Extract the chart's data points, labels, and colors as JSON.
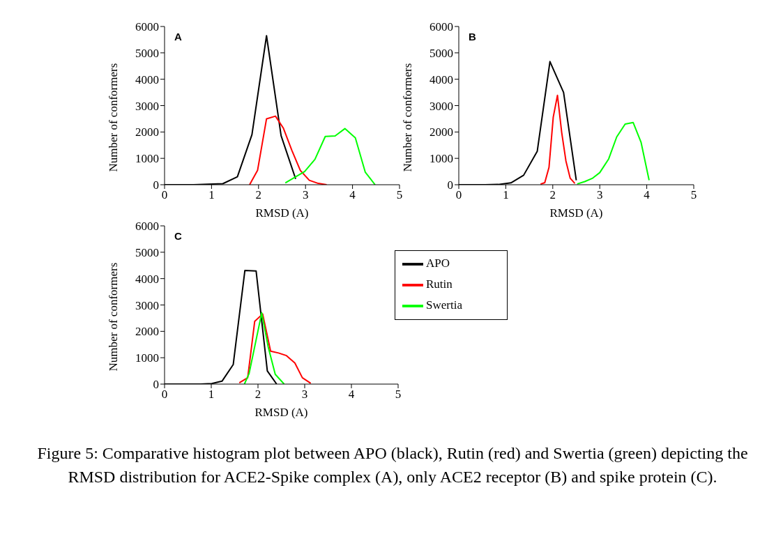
{
  "chart_data": [
    {
      "type": "line",
      "title": "A",
      "xlabel": "RMSD (A)",
      "ylabel": "Number of conformers",
      "xlim": [
        0,
        5
      ],
      "xticks": [
        0,
        1,
        2,
        3,
        4,
        5
      ],
      "ylim": [
        0,
        6000
      ],
      "yticks": [
        0,
        1000,
        2000,
        3000,
        4000,
        5000,
        6000
      ],
      "legend": false,
      "marker": "none",
      "line_style": "solid",
      "series": [
        {
          "color": "#000000",
          "x": [
            0,
            0.31,
            0.62,
            0.93,
            1.24,
            1.55,
            1.86,
            2.17,
            2.48,
            2.79
          ],
          "values": [
            0,
            0,
            0,
            20,
            40,
            300,
            1900,
            5650,
            1860,
            220
          ]
        },
        {
          "color": "#ff0000",
          "x": [
            1.81,
            1.98,
            2.17,
            2.36,
            2.53,
            2.71,
            2.89,
            3.08,
            3.27,
            3.45
          ],
          "values": [
            0,
            550,
            2500,
            2600,
            2140,
            1300,
            540,
            170,
            50,
            0
          ]
        },
        {
          "color": "#00ff00",
          "x": [
            2.57,
            2.98,
            3.2,
            3.42,
            3.63,
            3.84,
            4.06,
            4.27,
            4.48
          ],
          "values": [
            70,
            500,
            960,
            1830,
            1850,
            2130,
            1780,
            480,
            0
          ]
        }
      ]
    },
    {
      "type": "line",
      "title": "B",
      "xlabel": "RMSD (A)",
      "ylabel": "Number of conformers",
      "xlim": [
        0,
        5
      ],
      "xticks": [
        0,
        1,
        2,
        3,
        4,
        5
      ],
      "ylim": [
        0,
        6000
      ],
      "yticks": [
        0,
        1000,
        2000,
        3000,
        4000,
        5000,
        6000
      ],
      "legend": false,
      "marker": "none",
      "line_style": "solid",
      "series": [
        {
          "color": "#000000",
          "x": [
            0,
            0.28,
            0.56,
            0.84,
            1.11,
            1.38,
            1.67,
            1.94,
            2.23,
            2.5
          ],
          "values": [
            0,
            0,
            0,
            10,
            70,
            360,
            1270,
            4670,
            3500,
            170
          ]
        },
        {
          "color": "#ff0000",
          "x": [
            1.74,
            1.83,
            1.92,
            2.01,
            2.1,
            2.19,
            2.28,
            2.37,
            2.47
          ],
          "values": [
            20,
            80,
            660,
            2560,
            3390,
            1980,
            900,
            250,
            50
          ]
        },
        {
          "color": "#00ff00",
          "x": [
            2.52,
            2.68,
            2.84,
            3.0,
            3.19,
            3.36,
            3.54,
            3.71,
            3.88,
            4.05
          ],
          "values": [
            30,
            120,
            240,
            460,
            980,
            1810,
            2300,
            2360,
            1600,
            170
          ]
        }
      ]
    },
    {
      "type": "line",
      "title": "C",
      "xlabel": "RMSD (A)",
      "ylabel": "Number of conformers",
      "xlim": [
        0,
        5
      ],
      "xticks": [
        0,
        1,
        2,
        3,
        4,
        5
      ],
      "ylim": [
        0,
        6000
      ],
      "yticks": [
        0,
        1000,
        2000,
        3000,
        4000,
        5000,
        6000
      ],
      "legend": "right",
      "marker": "none",
      "line_style": "solid",
      "annotations": [
        "Figure 5: Comparative histogram plot between APO (black), Rutin (red) and Swertia (green) depicting the RMSD distribution for ACE2-Spike complex (A), only ACE2 receptor (B) and spike protein (C)."
      ],
      "series": [
        {
          "name": "APO",
          "color": "#000000",
          "x": [
            0,
            0.25,
            0.5,
            0.77,
            1.01,
            1.23,
            1.47,
            1.72,
            1.96,
            2.2,
            2.4
          ],
          "values": [
            0,
            0,
            0,
            0,
            20,
            110,
            740,
            4310,
            4290,
            500,
            0
          ]
        },
        {
          "name": "Rutin",
          "color": "#ff0000",
          "x": [
            1.6,
            1.78,
            1.93,
            2.1,
            2.27,
            2.44,
            2.61,
            2.79,
            2.95,
            3.13
          ],
          "values": [
            50,
            240,
            2380,
            2660,
            1250,
            1180,
            1080,
            800,
            240,
            30
          ]
        },
        {
          "name": "Swertia",
          "color": "#00ff00",
          "x": [
            1.71,
            1.81,
            2.08,
            2.22,
            2.37,
            2.56
          ],
          "values": [
            0,
            400,
            2700,
            1400,
            370,
            0
          ]
        }
      ]
    }
  ]
}
